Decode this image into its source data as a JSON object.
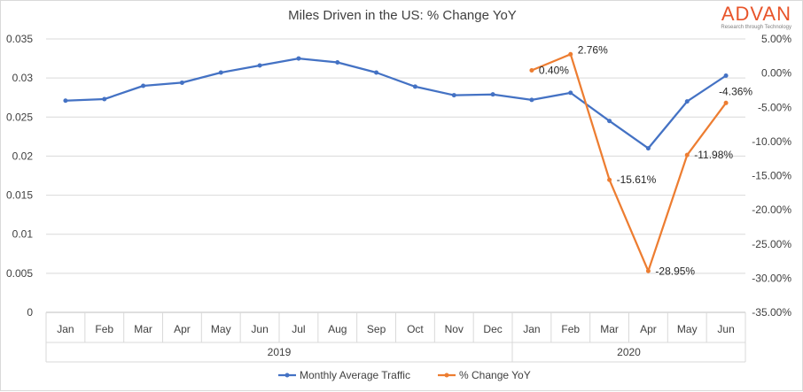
{
  "chart_data": {
    "type": "line",
    "title": "Miles Driven in the US:  % Change YoY",
    "categories": [
      "Jan",
      "Feb",
      "Mar",
      "Apr",
      "May",
      "Jun",
      "Jul",
      "Aug",
      "Sep",
      "Oct",
      "Nov",
      "Dec",
      "Jan",
      "Feb",
      "Mar",
      "Apr",
      "May",
      "Jun"
    ],
    "category_groups": [
      {
        "label": "2019",
        "count": 12
      },
      {
        "label": "2020",
        "count": 6
      }
    ],
    "left_axis": {
      "min": 0,
      "max": 0.035,
      "ticks": [
        "0.035",
        "0.03",
        "0.025",
        "0.02",
        "0.015",
        "0.01",
        "0.005",
        "0"
      ]
    },
    "right_axis": {
      "min": -35,
      "max": 5,
      "ticks": [
        "5.00%",
        "0.00%",
        "-5.00%",
        "-10.00%",
        "-15.00%",
        "-20.00%",
        "-25.00%",
        "-30.00%",
        "-35.00%"
      ]
    },
    "grid": true,
    "legend_position": "bottom",
    "series": [
      {
        "name": "Monthly Average Traffic",
        "axis": "left",
        "color": "#4472c4",
        "values": [
          0.0271,
          0.0273,
          0.029,
          0.0294,
          0.0307,
          0.0316,
          0.0325,
          0.032,
          0.0307,
          0.0289,
          0.0278,
          0.0279,
          0.0272,
          0.0281,
          0.0245,
          0.021,
          0.027,
          0.0303
        ]
      },
      {
        "name": "% Change YoY",
        "axis": "right",
        "color": "#ed7d31",
        "values": [
          null,
          null,
          null,
          null,
          null,
          null,
          null,
          null,
          null,
          null,
          null,
          null,
          0.4,
          2.76,
          -15.61,
          -28.95,
          -11.98,
          -4.36
        ],
        "labels": [
          null,
          null,
          null,
          null,
          null,
          null,
          null,
          null,
          null,
          null,
          null,
          null,
          "0.40%",
          "2.76%",
          "-15.61%",
          "-28.95%",
          "-11.98%",
          "-4.36%"
        ]
      }
    ]
  },
  "brand": {
    "name": "ADVAN",
    "tagline": "Research through Technology"
  }
}
